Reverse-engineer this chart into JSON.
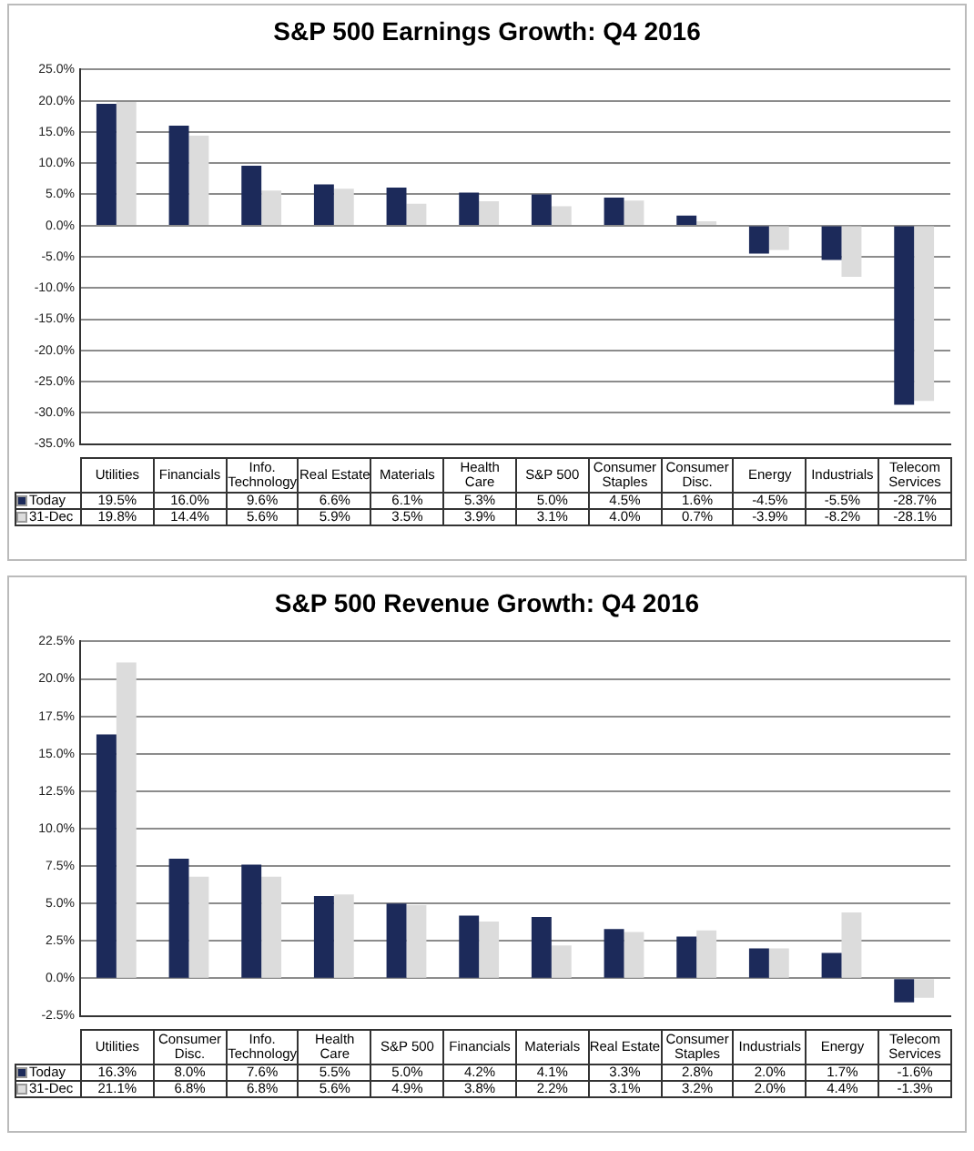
{
  "chart_data": [
    {
      "type": "bar",
      "title": "S&P 500 Earnings Growth: Q4 2016",
      "categories": [
        "Utilities",
        "Financials",
        "Info. Technology",
        "Real Estate",
        "Materials",
        "Health Care",
        "S&P 500",
        "Consumer Staples",
        "Consumer Disc.",
        "Energy",
        "Industrials",
        "Telecom Services"
      ],
      "series": [
        {
          "name": "Today",
          "color": "#1c2a5a",
          "values": [
            19.5,
            16.0,
            9.6,
            6.6,
            6.1,
            5.3,
            5.0,
            4.5,
            1.6,
            -4.5,
            -5.5,
            -28.7
          ],
          "value_labels": [
            "19.5%",
            "16.0%",
            "9.6%",
            "6.6%",
            "6.1%",
            "5.3%",
            "5.0%",
            "4.5%",
            "1.6%",
            "-4.5%",
            "-5.5%",
            "-28.7%"
          ]
        },
        {
          "name": "31-Dec",
          "color": "#dcdcdc",
          "values": [
            19.8,
            14.4,
            5.6,
            5.9,
            3.5,
            3.9,
            3.1,
            4.0,
            0.7,
            -3.9,
            -8.2,
            -28.1
          ],
          "value_labels": [
            "19.8%",
            "14.4%",
            "5.6%",
            "5.9%",
            "3.5%",
            "3.9%",
            "3.1%",
            "4.0%",
            "0.7%",
            "-3.9%",
            "-8.2%",
            "-28.1%"
          ]
        }
      ],
      "ylim": [
        -35,
        25
      ],
      "yticks": [
        {
          "value": -35,
          "label": "-35.0%"
        },
        {
          "value": -30,
          "label": "-30.0%"
        },
        {
          "value": -25,
          "label": "-25.0%"
        },
        {
          "value": -20,
          "label": "-20.0%"
        },
        {
          "value": -15,
          "label": "-15.0%"
        },
        {
          "value": -10,
          "label": "-10.0%"
        },
        {
          "value": -5,
          "label": "-5.0%"
        },
        {
          "value": 0,
          "label": "0.0%"
        },
        {
          "value": 5,
          "label": "5.0%"
        },
        {
          "value": 10,
          "label": "10.0%"
        },
        {
          "value": 15,
          "label": "15.0%"
        },
        {
          "value": 20,
          "label": "20.0%"
        },
        {
          "value": 25,
          "label": "25.0%"
        }
      ],
      "grid": "y",
      "legend": "bottom"
    },
    {
      "type": "bar",
      "title": "S&P 500 Revenue Growth: Q4 2016",
      "categories": [
        "Utilities",
        "Consumer Disc.",
        "Info. Technology",
        "Health Care",
        "S&P 500",
        "Financials",
        "Materials",
        "Real Estate",
        "Consumer Staples",
        "Industrials",
        "Energy",
        "Telecom Services"
      ],
      "series": [
        {
          "name": "Today",
          "color": "#1c2a5a",
          "values": [
            16.3,
            8.0,
            7.6,
            5.5,
            5.0,
            4.2,
            4.1,
            3.3,
            2.8,
            2.0,
            1.7,
            -1.6
          ],
          "value_labels": [
            "16.3%",
            "8.0%",
            "7.6%",
            "5.5%",
            "5.0%",
            "4.2%",
            "4.1%",
            "3.3%",
            "2.8%",
            "2.0%",
            "1.7%",
            "-1.6%"
          ]
        },
        {
          "name": "31-Dec",
          "color": "#dcdcdc",
          "values": [
            21.1,
            6.8,
            6.8,
            5.6,
            4.9,
            3.8,
            2.2,
            3.1,
            3.2,
            2.0,
            4.4,
            -1.3
          ],
          "value_labels": [
            "21.1%",
            "6.8%",
            "6.8%",
            "5.6%",
            "4.9%",
            "3.8%",
            "2.2%",
            "3.1%",
            "3.2%",
            "2.0%",
            "4.4%",
            "-1.3%"
          ]
        }
      ],
      "ylim": [
        -2.5,
        22.5
      ],
      "yticks": [
        {
          "value": -2.5,
          "label": "-2.5%"
        },
        {
          "value": 0,
          "label": "0.0%"
        },
        {
          "value": 2.5,
          "label": "2.5%"
        },
        {
          "value": 5,
          "label": "5.0%"
        },
        {
          "value": 7.5,
          "label": "7.5%"
        },
        {
          "value": 10,
          "label": "10.0%"
        },
        {
          "value": 12.5,
          "label": "12.5%"
        },
        {
          "value": 15,
          "label": "15.0%"
        },
        {
          "value": 17.5,
          "label": "17.5%"
        },
        {
          "value": 20,
          "label": "20.0%"
        },
        {
          "value": 22.5,
          "label": "22.5%"
        }
      ],
      "grid": "y",
      "legend": "bottom"
    }
  ]
}
